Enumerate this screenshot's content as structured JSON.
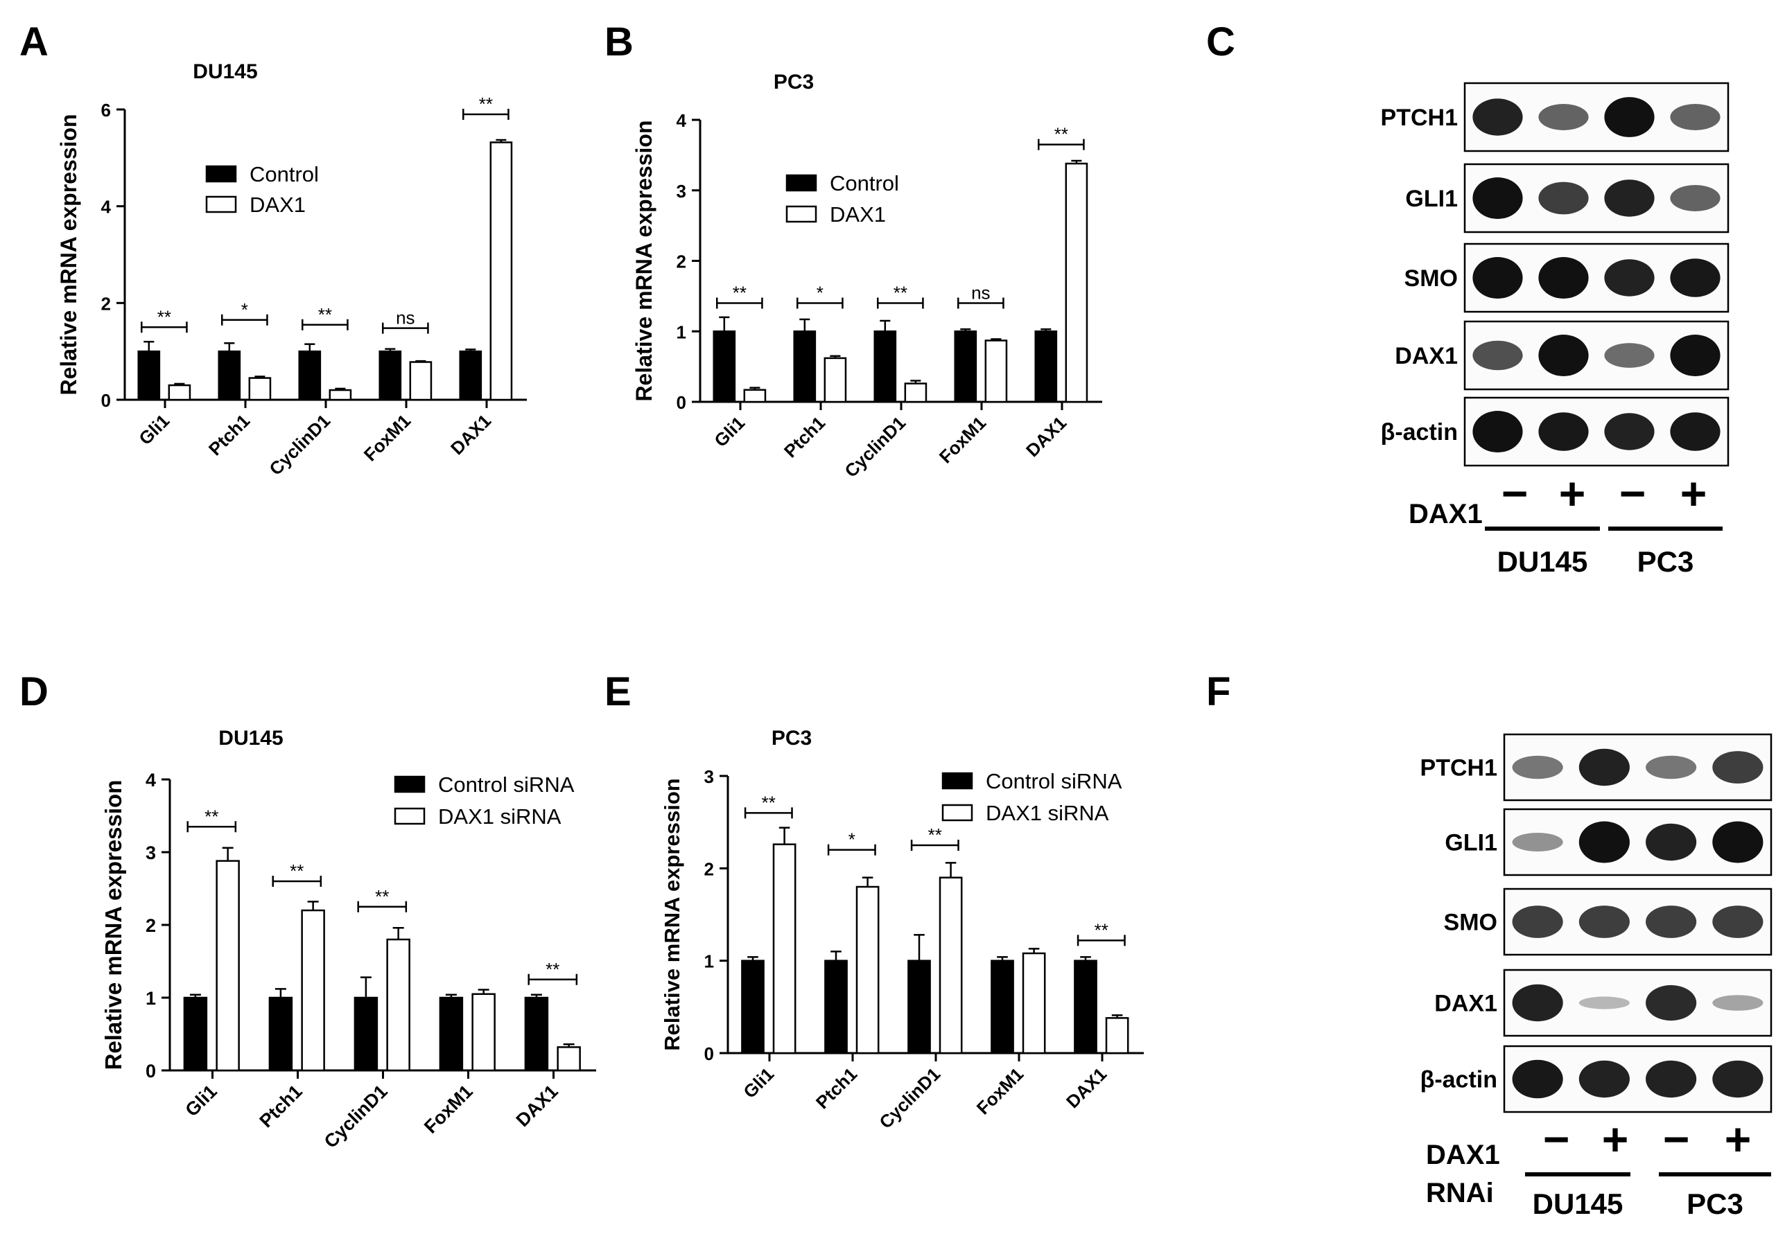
{
  "panel_letters": [
    "A",
    "B",
    "C",
    "D",
    "E",
    "F"
  ],
  "legend_pairs": [
    [
      "Control",
      "DAX1"
    ],
    [
      "Control",
      "DAX1"
    ],
    [
      "Control siRNA",
      "DAX1 siRNA"
    ],
    [
      "Control siRNA",
      "DAX1 siRNA"
    ]
  ],
  "chart_data": [
    {
      "type": "bar",
      "panel": "A",
      "title": "DU145",
      "xlabel": "",
      "ylabel": "Relative mRNA expression",
      "categories": [
        "Gli1",
        "Ptch1",
        "CyclinD1",
        "FoxM1",
        "DAX1"
      ],
      "ylim": [
        0,
        6
      ],
      "yticks": [
        0,
        2,
        4,
        6
      ],
      "series": [
        {
          "name": "Control",
          "color": "#000000",
          "values": [
            1.0,
            1.0,
            1.0,
            1.0,
            1.0
          ],
          "errors": [
            0.2,
            0.17,
            0.15,
            0.05,
            0.04
          ]
        },
        {
          "name": "DAX1",
          "color": "#ffffff",
          "values": [
            0.3,
            0.45,
            0.2,
            0.78,
            5.32
          ],
          "errors": [
            0.03,
            0.03,
            0.03,
            0.02,
            0.05
          ]
        }
      ],
      "significance": [
        "**",
        "*",
        "**",
        "ns",
        "**"
      ],
      "sig_heights": [
        1.5,
        1.65,
        1.55,
        1.48,
        5.9
      ]
    },
    {
      "type": "bar",
      "panel": "B",
      "title": "PC3",
      "xlabel": "",
      "ylabel": "Relative mRNA expression",
      "categories": [
        "Gli1",
        "Ptch1",
        "CyclinD1",
        "FoxM1",
        "DAX1"
      ],
      "ylim": [
        0,
        4
      ],
      "yticks": [
        0,
        1,
        2,
        3,
        4
      ],
      "series": [
        {
          "name": "Control",
          "color": "#000000",
          "values": [
            1.0,
            1.0,
            1.0,
            1.0,
            1.0
          ],
          "errors": [
            0.2,
            0.17,
            0.15,
            0.03,
            0.03
          ]
        },
        {
          "name": "DAX1",
          "color": "#ffffff",
          "values": [
            0.17,
            0.62,
            0.26,
            0.87,
            3.38
          ],
          "errors": [
            0.03,
            0.03,
            0.04,
            0.02,
            0.04
          ]
        }
      ],
      "significance": [
        "**",
        "*",
        "**",
        "ns",
        "**"
      ],
      "sig_heights": [
        1.4,
        1.4,
        1.4,
        1.4,
        3.65
      ]
    },
    {
      "type": "bar",
      "panel": "D",
      "title": "DU145",
      "xlabel": "",
      "ylabel": "Relative mRNA expression",
      "categories": [
        "Gli1",
        "Ptch1",
        "CyclinD1",
        "FoxM1",
        "DAX1"
      ],
      "ylim": [
        0,
        4
      ],
      "yticks": [
        0,
        1,
        2,
        3,
        4
      ],
      "series": [
        {
          "name": "Control siRNA",
          "color": "#000000",
          "values": [
            1.0,
            1.0,
            1.0,
            1.0,
            1.0
          ],
          "errors": [
            0.04,
            0.12,
            0.28,
            0.04,
            0.04
          ]
        },
        {
          "name": "DAX1 siRNA",
          "color": "#ffffff",
          "values": [
            2.88,
            2.2,
            1.8,
            1.05,
            0.32
          ],
          "errors": [
            0.18,
            0.12,
            0.16,
            0.06,
            0.04
          ]
        }
      ],
      "significance": [
        "**",
        "**",
        "**",
        "",
        "**"
      ],
      "sig_heights": [
        3.35,
        2.6,
        2.25,
        null,
        1.25
      ]
    },
    {
      "type": "bar",
      "panel": "E",
      "title": "PC3",
      "xlabel": "",
      "ylabel": "Relative mRNA expression",
      "categories": [
        "Gli1",
        "Ptch1",
        "CyclinD1",
        "FoxM1",
        "DAX1"
      ],
      "ylim": [
        0,
        3
      ],
      "yticks": [
        0,
        1,
        2,
        3
      ],
      "series": [
        {
          "name": "Control siRNA",
          "color": "#000000",
          "values": [
            1.0,
            1.0,
            1.0,
            1.0,
            1.0
          ],
          "errors": [
            0.04,
            0.1,
            0.28,
            0.04,
            0.04
          ]
        },
        {
          "name": "DAX1 siRNA",
          "color": "#ffffff",
          "values": [
            2.26,
            1.8,
            1.9,
            1.08,
            0.38
          ],
          "errors": [
            0.18,
            0.1,
            0.16,
            0.05,
            0.03
          ]
        }
      ],
      "significance": [
        "**",
        "*",
        "**",
        "",
        "**"
      ],
      "sig_heights": [
        2.6,
        2.2,
        2.25,
        null,
        1.22
      ]
    }
  ],
  "blots": [
    {
      "panel": "C",
      "rows": [
        "PTCH1",
        "GLI1",
        "SMO",
        "DAX1",
        "β-actin"
      ],
      "treatment_label": "DAX1",
      "signs": [
        "−",
        "+",
        "−",
        "+"
      ],
      "groups": [
        "DU145",
        "PC3"
      ],
      "band_intensity": [
        [
          0.85,
          0.5,
          0.95,
          0.5
        ],
        [
          1.0,
          0.7,
          0.85,
          0.5
        ],
        [
          1.0,
          1.0,
          0.85,
          0.9
        ],
        [
          0.6,
          1.0,
          0.45,
          1.0
        ],
        [
          1.0,
          0.9,
          0.85,
          0.9
        ]
      ]
    },
    {
      "panel": "F",
      "rows": [
        "PTCH1",
        "GLI1",
        "SMO",
        "DAX1",
        "β-actin"
      ],
      "treatment_label": "DAX1",
      "treatment_label_2": "RNAi",
      "signs": [
        "−",
        "+",
        "−",
        "+"
      ],
      "groups": [
        "DU145",
        "PC3"
      ],
      "band_intensity": [
        [
          0.4,
          0.85,
          0.4,
          0.7
        ],
        [
          0.25,
          1.0,
          0.85,
          1.0
        ],
        [
          0.7,
          0.7,
          0.7,
          0.7
        ],
        [
          0.85,
          0.05,
          0.8,
          0.15
        ],
        [
          0.9,
          0.85,
          0.85,
          0.85
        ]
      ]
    }
  ]
}
